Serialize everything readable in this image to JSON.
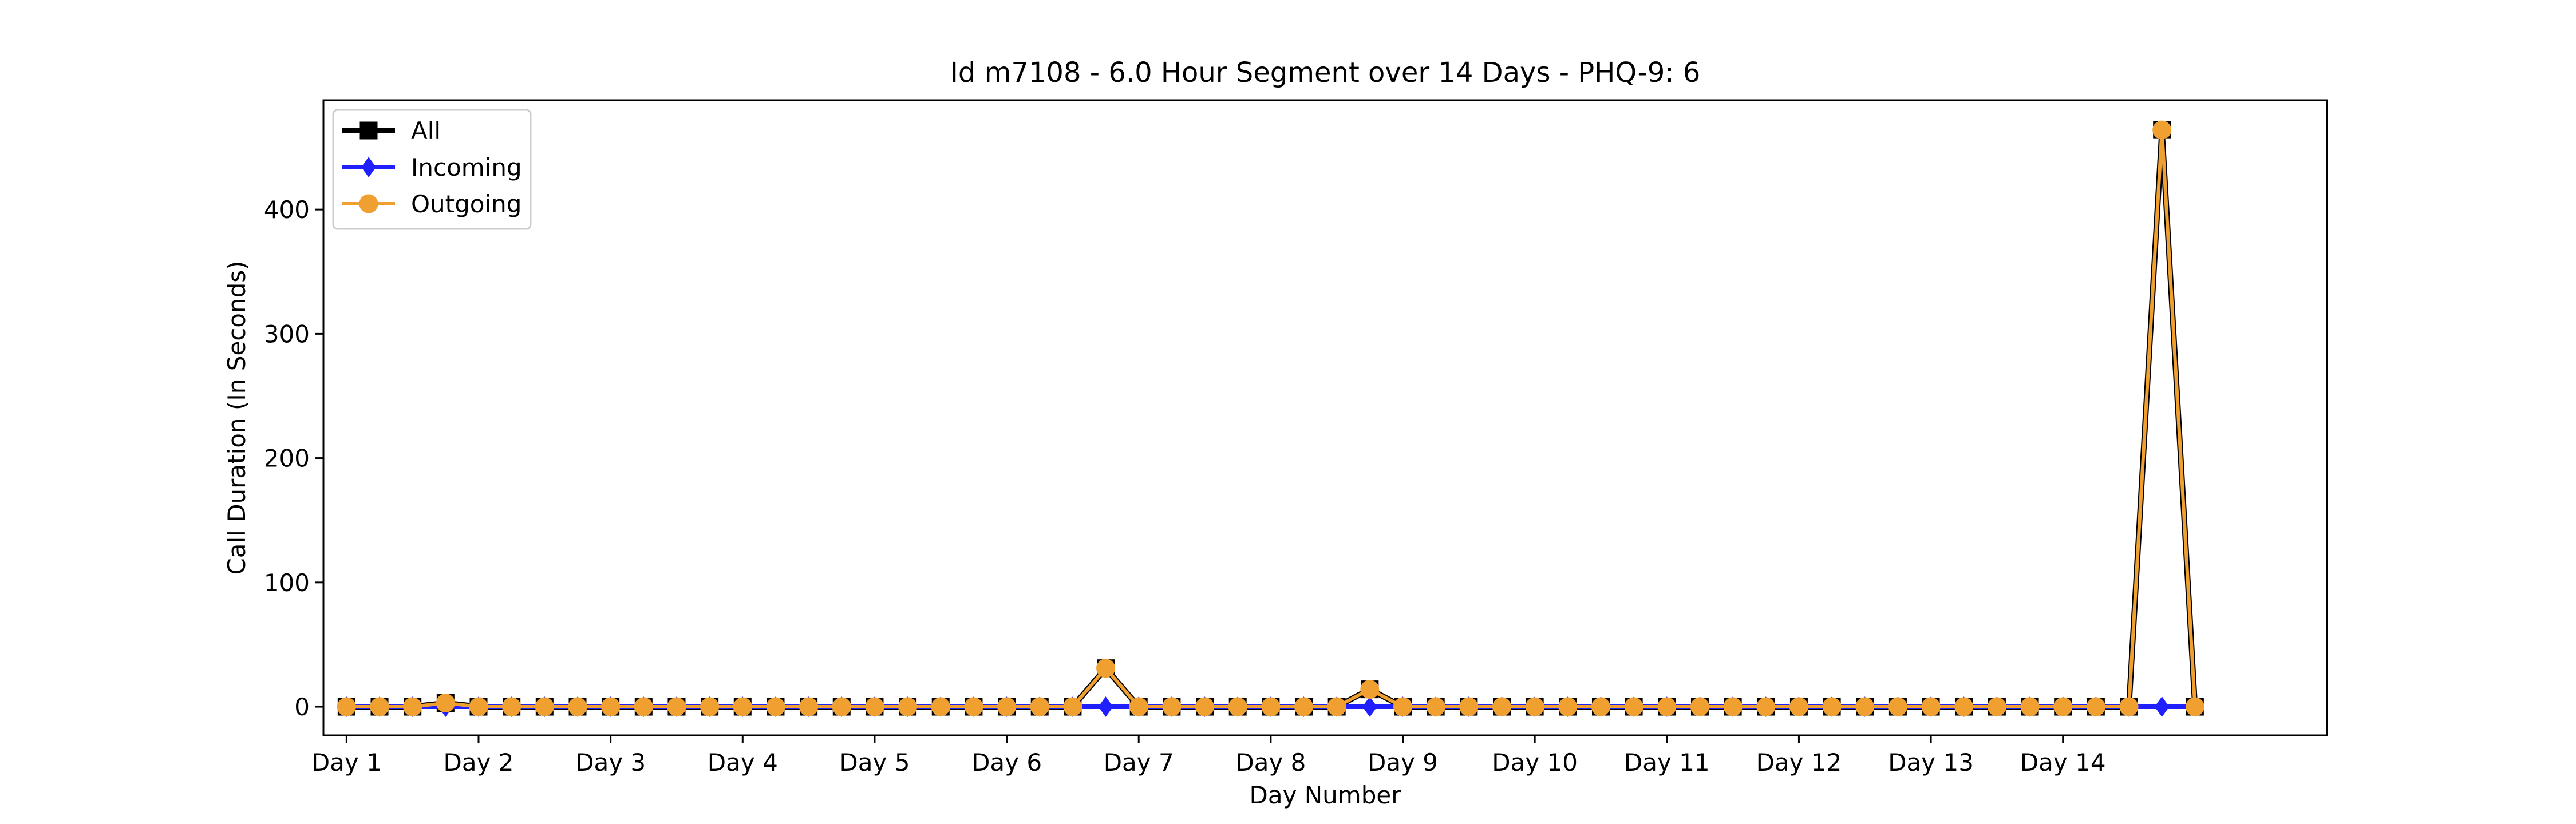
{
  "chart_data": {
    "type": "line",
    "title": "Id m7108 - 6.0 Hour Segment over 14 Days - PHQ-9: 6",
    "xlabel": "Day Number",
    "ylabel": "Call Duration (In Seconds)",
    "xlim": [
      -0.7,
      60
    ],
    "ylim": [
      -23,
      488
    ],
    "x_tick_positions": [
      0,
      4,
      8,
      12,
      16,
      20,
      24,
      28,
      32,
      36,
      40,
      44,
      48,
      52
    ],
    "x_tick_labels": [
      "Day 1",
      "Day 2",
      "Day 3",
      "Day 4",
      "Day 5",
      "Day 6",
      "Day 7",
      "Day 8",
      "Day 9",
      "Day 10",
      "Day 11",
      "Day 12",
      "Day 13",
      "Day 14"
    ],
    "y_ticks": [
      0,
      100,
      200,
      300,
      400
    ],
    "grid": false,
    "legend_position": "top-left",
    "series": [
      {
        "name": "All",
        "color": "#000000",
        "marker": "square",
        "values": [
          0,
          0,
          0,
          3,
          0,
          0,
          0,
          0,
          0,
          0,
          0,
          0,
          0,
          0,
          0,
          0,
          0,
          0,
          0,
          0,
          0,
          0,
          0,
          31,
          0,
          0,
          0,
          0,
          0,
          0,
          0,
          14,
          0,
          0,
          0,
          0,
          0,
          0,
          0,
          0,
          0,
          0,
          0,
          0,
          0,
          0,
          0,
          0,
          0,
          0,
          0,
          0,
          0,
          0,
          0,
          464,
          0
        ]
      },
      {
        "name": "Incoming",
        "color": "#1f1fff",
        "marker": "diamond",
        "values": [
          0,
          0,
          0,
          0,
          0,
          0,
          0,
          0,
          0,
          0,
          0,
          0,
          0,
          0,
          0,
          0,
          0,
          0,
          0,
          0,
          0,
          0,
          0,
          0,
          0,
          0,
          0,
          0,
          0,
          0,
          0,
          0,
          0,
          0,
          0,
          0,
          0,
          0,
          0,
          0,
          0,
          0,
          0,
          0,
          0,
          0,
          0,
          0,
          0,
          0,
          0,
          0,
          0,
          0,
          0,
          0,
          0
        ]
      },
      {
        "name": "Outgoing",
        "color": "#f0a030",
        "marker": "circle",
        "values": [
          0,
          0,
          0,
          3,
          0,
          0,
          0,
          0,
          0,
          0,
          0,
          0,
          0,
          0,
          0,
          0,
          0,
          0,
          0,
          0,
          0,
          0,
          0,
          31,
          0,
          0,
          0,
          0,
          0,
          0,
          0,
          14,
          0,
          0,
          0,
          0,
          0,
          0,
          0,
          0,
          0,
          0,
          0,
          0,
          0,
          0,
          0,
          0,
          0,
          0,
          0,
          0,
          0,
          0,
          0,
          464,
          0
        ]
      }
    ]
  }
}
